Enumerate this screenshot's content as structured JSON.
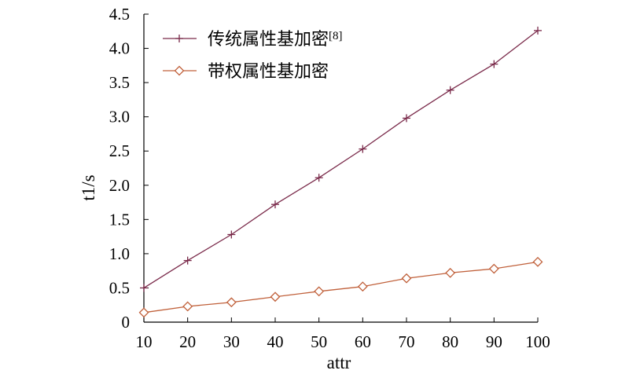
{
  "chart_data": {
    "type": "line",
    "title": "",
    "xlabel": "attr",
    "ylabel": "t1/s",
    "x": [
      10,
      20,
      30,
      40,
      50,
      60,
      70,
      80,
      90,
      100
    ],
    "xlim": [
      10,
      100
    ],
    "ylim": [
      0,
      4.5
    ],
    "xticks": [
      "10",
      "20",
      "30",
      "40",
      "50",
      "60",
      "70",
      "80",
      "90",
      "100"
    ],
    "yticks": [
      "0",
      "0.5",
      "1.0",
      "1.5",
      "2.0",
      "2.5",
      "3.0",
      "3.5",
      "4.0",
      "4.5"
    ],
    "grid": false,
    "legend_position": "top-left",
    "series": [
      {
        "name": "传统属性基加密",
        "name_ref": "[8]",
        "marker": "plus",
        "color": "#7a2a4a",
        "values": [
          0.5,
          0.9,
          1.28,
          1.72,
          2.11,
          2.53,
          2.98,
          3.39,
          3.77,
          4.26
        ]
      },
      {
        "name": "带权属性基加密",
        "name_ref": "",
        "marker": "diamond",
        "color": "#c0603a",
        "values": [
          0.14,
          0.23,
          0.29,
          0.37,
          0.45,
          0.52,
          0.64,
          0.72,
          0.78,
          0.88
        ]
      }
    ]
  }
}
